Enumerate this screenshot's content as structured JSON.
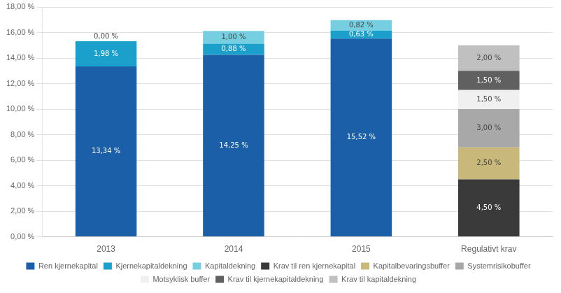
{
  "chart_data": {
    "type": "bar",
    "stacked": true,
    "data_labels": true,
    "grid": true,
    "legend": "bottom",
    "categories": [
      "2013",
      "2014",
      "2015",
      "Regulativt krav"
    ],
    "series": [
      {
        "name": "Ren kjernekapital",
        "color": "#1a5fa8",
        "values": [
          13.34,
          14.25,
          15.52,
          0
        ],
        "value_labels": [
          "13,34 %",
          "14,25 %",
          "15,52 %",
          null
        ]
      },
      {
        "name": "Kjernekapitaldekning",
        "color": "#1ba0cb",
        "values": [
          1.98,
          0.88,
          0.63,
          0
        ],
        "value_labels": [
          "1,98 %",
          "0,88 %",
          "0,63 %",
          null
        ]
      },
      {
        "name": "Kapitaldekning",
        "color": "#75cfe0",
        "values": [
          0.0,
          1.0,
          0.82,
          0
        ],
        "value_labels": [
          "0,00 %",
          "1,00 %",
          "0,82 %",
          null
        ]
      },
      {
        "name": "Krav til ren kjernekapital",
        "color": "#3a3a3a",
        "values": [
          0,
          0,
          0,
          4.5
        ],
        "value_labels": [
          null,
          null,
          null,
          "4,50 %"
        ]
      },
      {
        "name": "Kapitalbevaringsbuffer",
        "color": "#c8b87a",
        "values": [
          0,
          0,
          0,
          2.5
        ],
        "value_labels": [
          null,
          null,
          null,
          "2,50 %"
        ]
      },
      {
        "name": "Systemrisikobuffer",
        "color": "#a8a8a8",
        "values": [
          0,
          0,
          0,
          3.0
        ],
        "value_labels": [
          null,
          null,
          null,
          "3,00 %"
        ]
      },
      {
        "name": "Motsyklisk buffer",
        "color": "#f0f0f0",
        "values": [
          0,
          0,
          0,
          1.5
        ],
        "value_labels": [
          null,
          null,
          null,
          "1,50 %"
        ]
      },
      {
        "name": "Krav til kjernekapitaldekning",
        "color": "#606060",
        "values": [
          0,
          0,
          0,
          1.5
        ],
        "value_labels": [
          null,
          null,
          null,
          "1,50 %"
        ]
      },
      {
        "name": "Krav til kapitaldekning",
        "color": "#c0c0c0",
        "values": [
          0,
          0,
          0,
          2.0
        ],
        "value_labels": [
          null,
          null,
          null,
          "2,00 %"
        ]
      }
    ],
    "ylim": [
      0,
      18
    ],
    "yticks": [
      {
        "value": 0,
        "label": "0,00 %"
      },
      {
        "value": 2,
        "label": "2,00 %"
      },
      {
        "value": 4,
        "label": "4,00 %"
      },
      {
        "value": 6,
        "label": "6,00 %"
      },
      {
        "value": 8,
        "label": "8,00 %"
      },
      {
        "value": 10,
        "label": "10,00 %"
      },
      {
        "value": 12,
        "label": "12,00 %"
      },
      {
        "value": 14,
        "label": "14,00 %"
      },
      {
        "value": 16,
        "label": "16,00 %"
      },
      {
        "value": 18,
        "label": "18,00 %"
      }
    ]
  }
}
